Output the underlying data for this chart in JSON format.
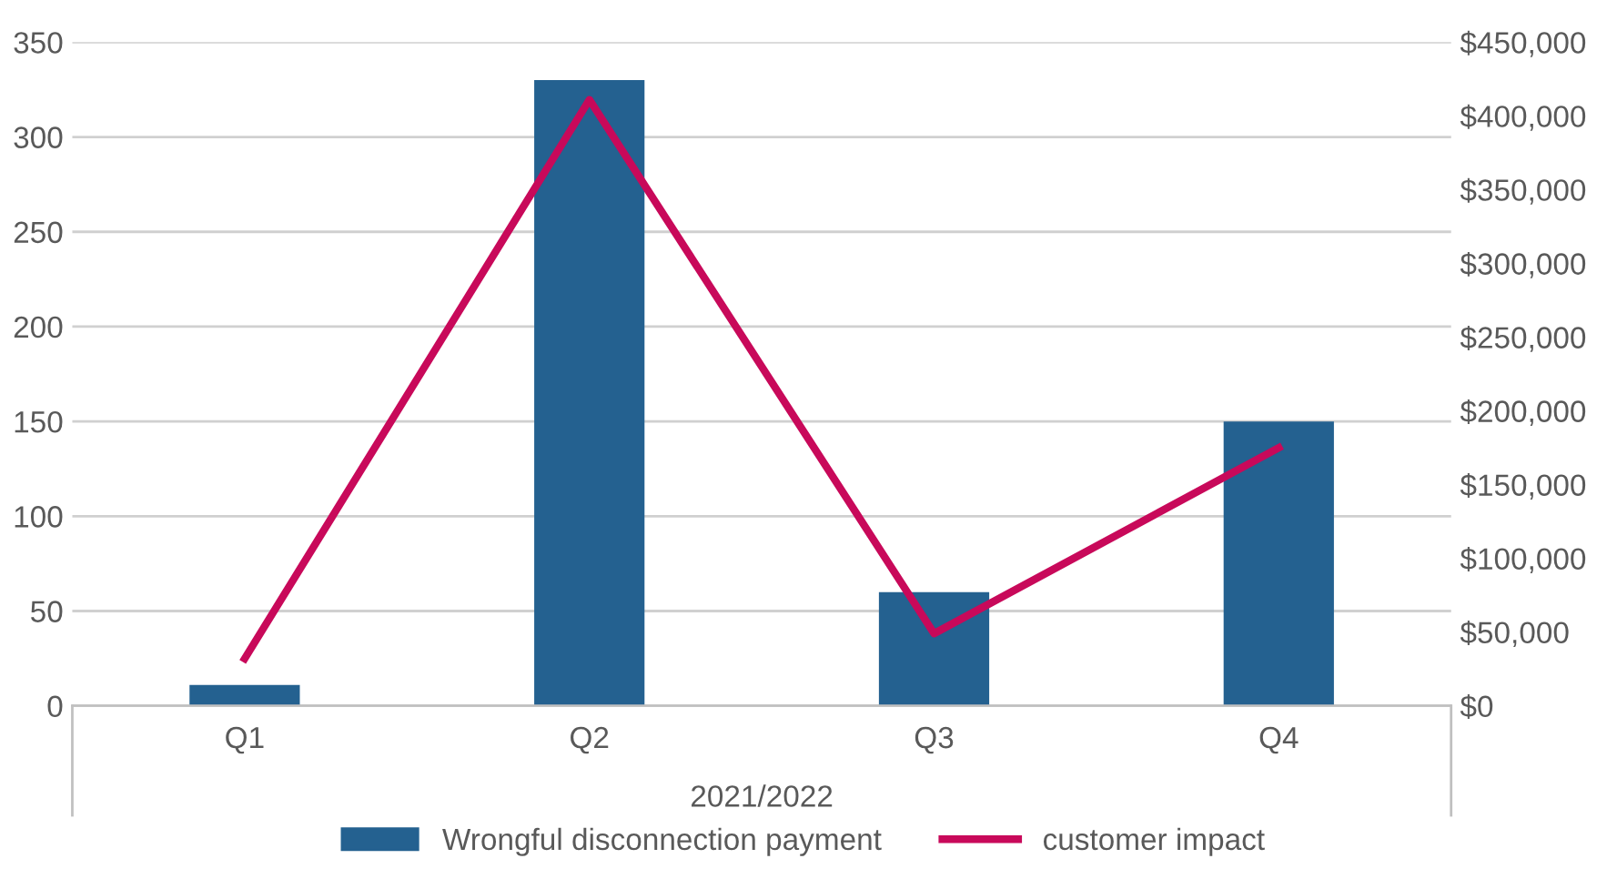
{
  "chart_data": {
    "type": "bar",
    "categories": [
      "Q1",
      "Q2",
      "Q3",
      "Q4"
    ],
    "xlabel": "2021/2022",
    "series": [
      {
        "name": "Wrongful disconnection payment",
        "color": "#246190",
        "values": [
          11,
          330,
          60,
          150
        ]
      },
      {
        "name": "customer impact",
        "type": "line",
        "axis": "y2",
        "color": "#c8095a",
        "values": [
          32000,
          411000,
          49000,
          175000
        ]
      }
    ],
    "ylim": [
      0,
      350
    ],
    "yticks": [
      0,
      50,
      100,
      150,
      200,
      250,
      300,
      350
    ],
    "y2lim": [
      0,
      450000
    ],
    "y2ticks": [
      {
        "value": 0,
        "label": "$0"
      },
      {
        "value": 50000,
        "label": "$50,000"
      },
      {
        "value": 100000,
        "label": "$100,000"
      },
      {
        "value": 150000,
        "label": "$150,000"
      },
      {
        "value": 200000,
        "label": "$200,000"
      },
      {
        "value": 250000,
        "label": "$250,000"
      },
      {
        "value": 300000,
        "label": "$300,000"
      },
      {
        "value": 350000,
        "label": "$350,000"
      },
      {
        "value": 400000,
        "label": "$400,000"
      },
      {
        "value": 450000,
        "label": "$450,000"
      }
    ],
    "grid": "y",
    "legend": "bottom",
    "marker": "none"
  }
}
